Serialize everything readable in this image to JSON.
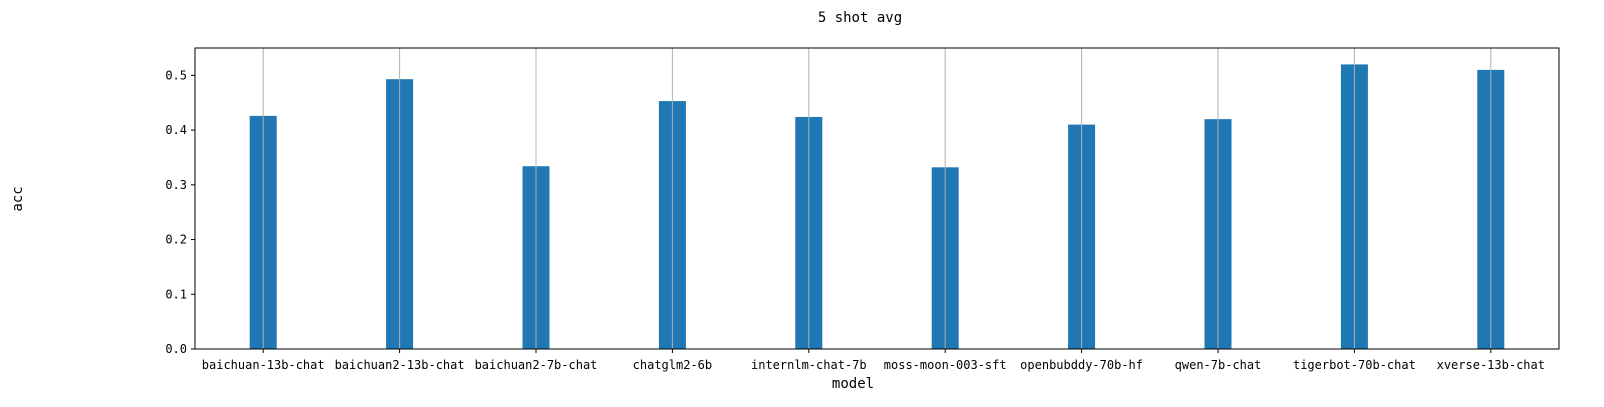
{
  "chart_data": {
    "type": "bar",
    "title": "5 shot avg",
    "xlabel": "model",
    "ylabel": "acc",
    "categories": [
      "baichuan-13b-chat",
      "baichuan2-13b-chat",
      "baichuan2-7b-chat",
      "chatglm2-6b",
      "internlm-chat-7b",
      "moss-moon-003-sft",
      "openbubddy-70b-hf",
      "qwen-7b-chat",
      "tigerbot-70b-chat",
      "xverse-13b-chat"
    ],
    "values": [
      0.426,
      0.493,
      0.334,
      0.453,
      0.424,
      0.332,
      0.41,
      0.42,
      0.52,
      0.51
    ],
    "ylim": [
      0,
      0.55
    ],
    "yticks": [
      "0.0",
      "0.1",
      "0.2",
      "0.3",
      "0.4",
      "0.5"
    ],
    "grid": "vertical",
    "legend": "none",
    "bar_color": "#1f77b4",
    "grid_color": "#b0b0b0"
  }
}
